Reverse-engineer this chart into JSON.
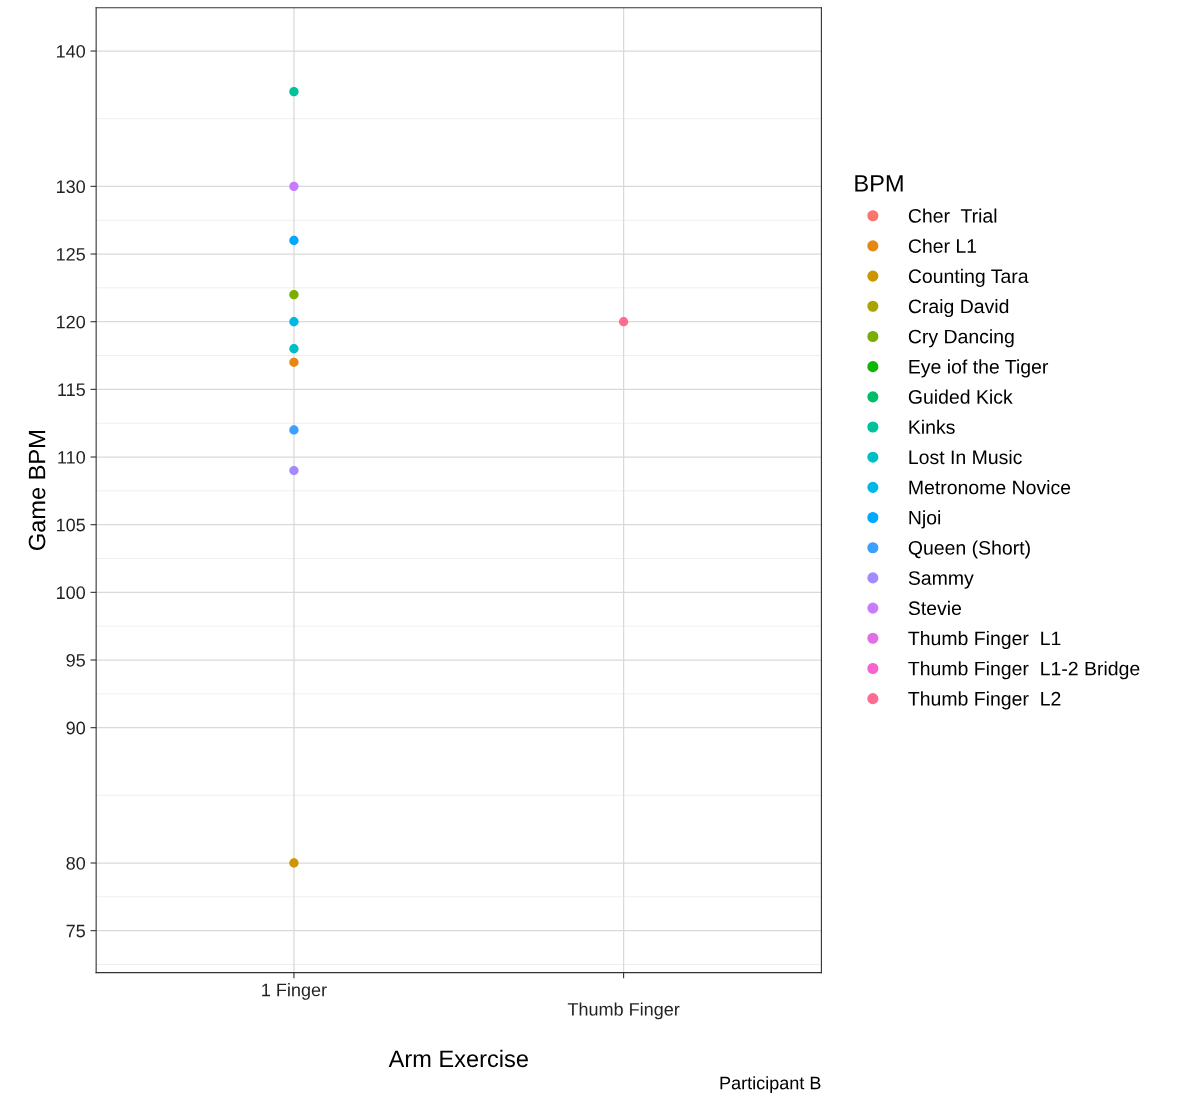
{
  "chart_data": {
    "type": "scatter",
    "xlabel": "Arm Exercise",
    "ylabel": "Game BPM",
    "legend_title": "BPM",
    "categories": [
      "1 Finger",
      "Thumb Finger"
    ],
    "ylim": [
      71.9,
      143.2
    ],
    "yticks": [
      75,
      80,
      90,
      95,
      100,
      105,
      110,
      115,
      120,
      125,
      130,
      140
    ],
    "grid": true,
    "legend": "right",
    "marker": "circle",
    "annotations": [
      "Participant B"
    ],
    "series": [
      {
        "name": "Cher  Trial",
        "color": "#f8766d",
        "values": [
          null,
          null
        ]
      },
      {
        "name": "Cher L1",
        "color": "#e68613",
        "values": [
          117,
          null
        ]
      },
      {
        "name": "Counting Tara",
        "color": "#cd9600",
        "values": [
          80,
          null
        ]
      },
      {
        "name": "Craig David",
        "color": "#aba300",
        "values": [
          null,
          null
        ]
      },
      {
        "name": "Cry Dancing",
        "color": "#7cae00",
        "values": [
          122,
          null
        ]
      },
      {
        "name": "Eye iof the Tiger",
        "color": "#0cb702",
        "values": [
          null,
          null
        ]
      },
      {
        "name": "Guided Kick",
        "color": "#00be67",
        "values": [
          null,
          null
        ]
      },
      {
        "name": "Kinks",
        "color": "#00c19a",
        "values": [
          137,
          null
        ]
      },
      {
        "name": "Lost In Music",
        "color": "#00bfc4",
        "values": [
          118,
          null
        ]
      },
      {
        "name": "Metronome Novice",
        "color": "#00b8e7",
        "values": [
          120,
          null
        ]
      },
      {
        "name": "Njoi",
        "color": "#00a9ff",
        "values": [
          126,
          null
        ]
      },
      {
        "name": "Queen (Short)",
        "color": "#3d9fff",
        "values": [
          112,
          null
        ]
      },
      {
        "name": "Sammy",
        "color": "#a58aff",
        "values": [
          109,
          null
        ]
      },
      {
        "name": "Stevie",
        "color": "#c77cff",
        "values": [
          130,
          null
        ]
      },
      {
        "name": "Thumb Finger  L1",
        "color": "#e36ee6",
        "values": [
          null,
          null
        ]
      },
      {
        "name": "Thumb Finger  L1-2 Bridge",
        "color": "#fa62d0",
        "values": [
          null,
          null
        ]
      },
      {
        "name": "Thumb Finger  L2",
        "color": "#ff6c91",
        "values": [
          null,
          120
        ]
      }
    ]
  }
}
